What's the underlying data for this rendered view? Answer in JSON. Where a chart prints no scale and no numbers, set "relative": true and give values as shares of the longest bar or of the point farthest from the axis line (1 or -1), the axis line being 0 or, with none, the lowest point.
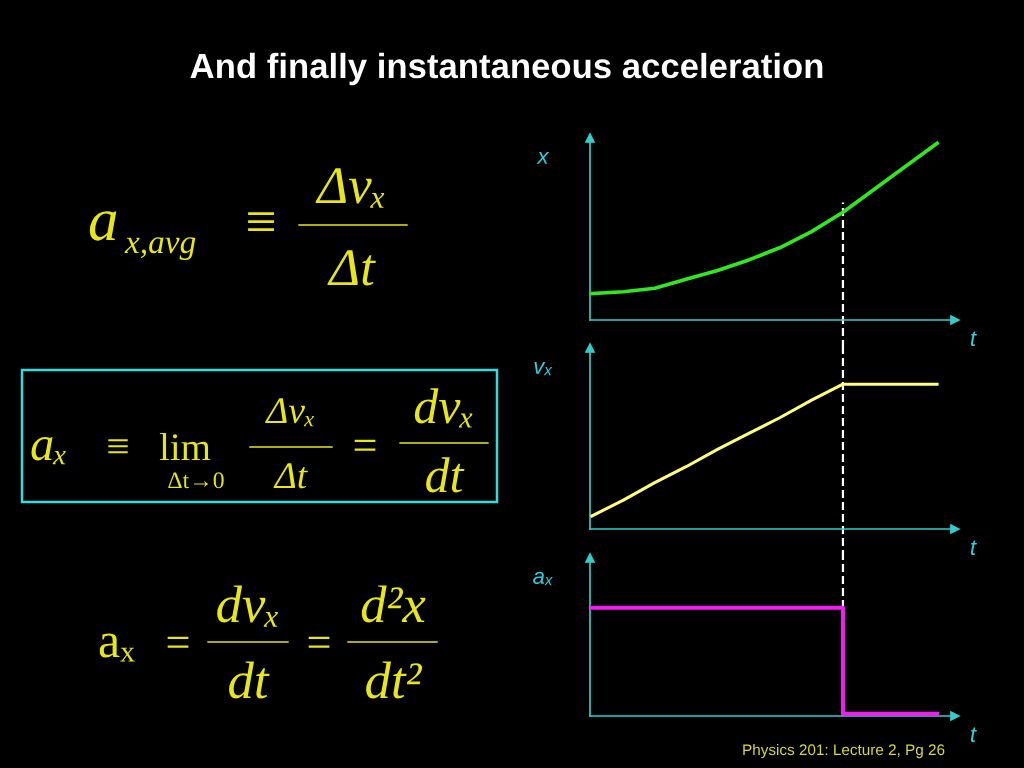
{
  "chart_data": [
    {
      "type": "other",
      "title": "And finally instantaneous acceleration",
      "annotations": [
        "a",
        "x,avg",
        "≡",
        "Δvₓ",
        "Δt",
        "aₓ",
        "≡",
        "lim",
        "Δt→0",
        "Δvₓ",
        "Δt",
        "=",
        "dvₓ",
        "dt",
        "aₓ",
        "=",
        "dvₓ",
        "dt",
        "=",
        "d²x",
        "dt²",
        "Physics 201: Lecture 2, Pg 26"
      ]
    },
    {
      "type": "line",
      "categories": [
        null,
        null,
        null,
        null,
        null,
        null,
        null,
        null,
        null,
        null,
        null,
        null
      ],
      "relative": true,
      "series": [
        {
          "color": "#33e622",
          "values": [
            0.15,
            0.16,
            0.18,
            0.23,
            0.28,
            0.34,
            0.41,
            0.5,
            0.61,
            0.74,
            0.87,
            1
          ]
        }
      ],
      "ylabel": "x",
      "xlabel": "t"
    },
    {
      "type": "line",
      "categories": [
        null,
        null,
        null,
        null,
        null,
        null,
        null,
        null,
        null,
        null,
        null,
        null
      ],
      "relative": true,
      "series": [
        {
          "color": "#ffff80",
          "values": [
            0.09,
            0.2,
            0.32,
            0.43,
            0.55,
            0.66,
            0.77,
            0.89,
            1,
            1,
            1,
            1
          ]
        }
      ],
      "ylabel": "vₓ",
      "xlabel": "t"
    },
    {
      "type": "step",
      "categories": [
        null,
        null,
        null,
        null,
        null,
        null,
        null,
        null,
        null,
        null,
        null,
        null
      ],
      "relative": true,
      "series": [
        {
          "color": "#f01ef0",
          "values": [
            1,
            1,
            1,
            1,
            1,
            1,
            1,
            1,
            0.02,
            0.02,
            0.02,
            0.02
          ]
        }
      ],
      "ylabel": "aₓ",
      "xlabel": "t"
    }
  ]
}
